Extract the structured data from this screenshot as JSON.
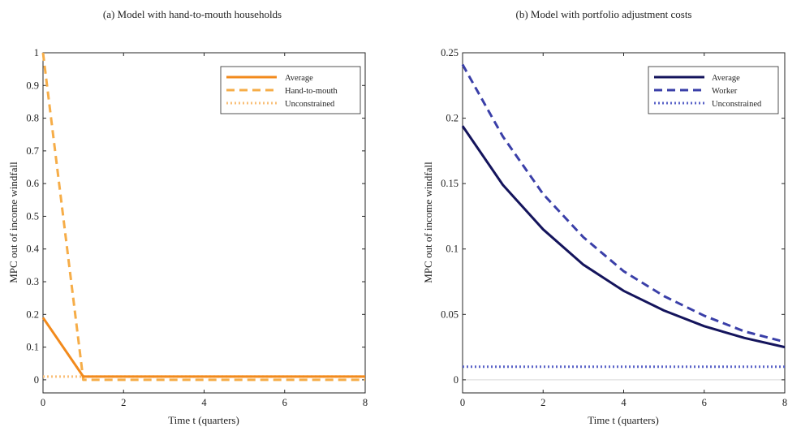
{
  "chart_data": [
    {
      "type": "line",
      "title": "(a) Model with hand-to-mouth households",
      "xlabel": "Time t (quarters)",
      "ylabel": "MPC out of income windfall",
      "xlim": [
        0,
        8
      ],
      "ylim": [
        -0.04,
        1
      ],
      "xticks": [
        "0",
        "2",
        "4",
        "6",
        "8"
      ],
      "yticks": [
        "0",
        "0.1",
        "0.2",
        "0.3",
        "0.4",
        "0.5",
        "0.6",
        "0.7",
        "0.8",
        "0.9",
        "1"
      ],
      "legend_position": "top-right",
      "grid": false,
      "x": [
        0,
        1,
        2,
        3,
        4,
        5,
        6,
        7,
        8
      ],
      "series": [
        {
          "name": "Average",
          "values": [
            0.19,
            0.01,
            0.01,
            0.01,
            0.01,
            0.01,
            0.01,
            0.01,
            0.01
          ],
          "color": "#f28a1c",
          "style": "solid"
        },
        {
          "name": "Hand-to-mouth",
          "values": [
            1.0,
            0.0,
            0.0,
            0.0,
            0.0,
            0.0,
            0.0,
            0.0,
            0.0
          ],
          "color": "#f6ad48",
          "style": "dashed"
        },
        {
          "name": "Unconstrained",
          "values": [
            0.01,
            0.01,
            0.01,
            0.01,
            0.01,
            0.01,
            0.01,
            0.01,
            0.01
          ],
          "color": "#f9bf78",
          "style": "dotted"
        }
      ]
    },
    {
      "type": "line",
      "title": "(b) Model with portfolio adjustment costs",
      "xlabel": "Time t (quarters)",
      "ylabel": "MPC out of income windfall",
      "xlim": [
        0,
        8
      ],
      "ylim": [
        -0.01,
        0.25
      ],
      "xticks": [
        "0",
        "2",
        "4",
        "6",
        "8"
      ],
      "yticks": [
        "0",
        "0.05",
        "0.1",
        "0.15",
        "0.2",
        "0.25"
      ],
      "legend_position": "top-right",
      "grid": false,
      "zero_line": true,
      "x": [
        0,
        1,
        2,
        3,
        4,
        5,
        6,
        7,
        8
      ],
      "series": [
        {
          "name": "Average",
          "values": [
            0.194,
            0.149,
            0.115,
            0.088,
            0.068,
            0.053,
            0.041,
            0.032,
            0.025
          ],
          "color": "#14145c",
          "style": "solid"
        },
        {
          "name": "Worker",
          "values": [
            0.241,
            0.186,
            0.142,
            0.109,
            0.083,
            0.064,
            0.049,
            0.037,
            0.029
          ],
          "color": "#3a3fa8",
          "style": "dashed"
        },
        {
          "name": "Unconstrained",
          "values": [
            0.01,
            0.01,
            0.01,
            0.01,
            0.01,
            0.01,
            0.01,
            0.01,
            0.01
          ],
          "color": "#5b64c8",
          "style": "dotted"
        }
      ]
    }
  ]
}
